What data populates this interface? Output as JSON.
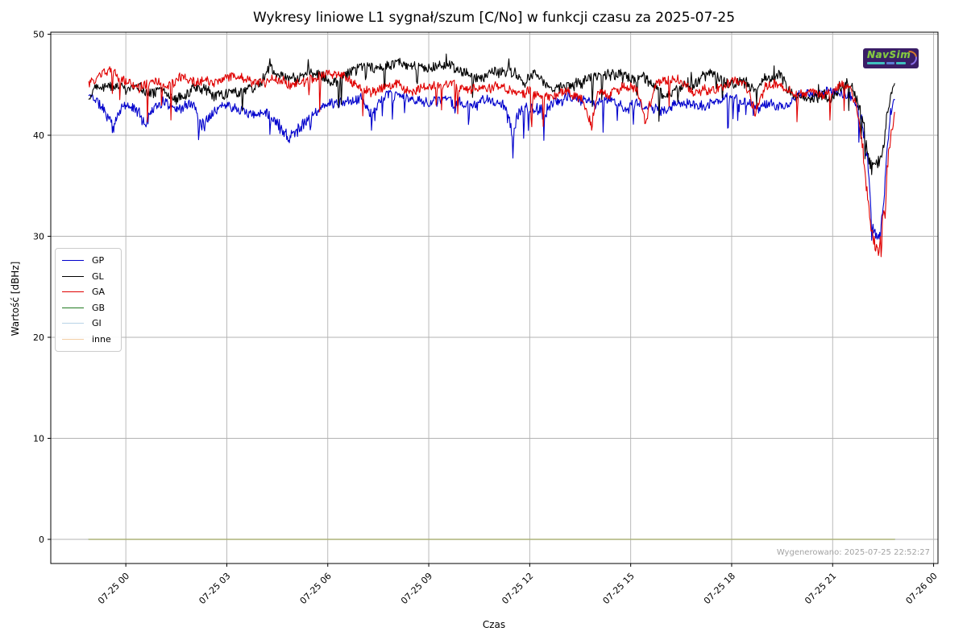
{
  "page_title": "Wykresy liniowe L1 sygnał/szum [C/No] w funkcji czasu za 2025-07-25",
  "branding": {
    "logo_text": "NavSim",
    "logo_bg": "#3a1d66",
    "logo_fg": "#8cc63e"
  },
  "chart_data": {
    "type": "line",
    "title": "Wykresy liniowe L1 sygnał/szum [C/No] w funkcji czasu za 2025-07-25",
    "xlabel": "Czas",
    "ylabel": "Wartość [dBHz]",
    "watermark": "Wygenerowano: 2025-07-25 22:52:27",
    "grid": true,
    "legend_position": "center left",
    "x_tick_labels": [
      "07-25 00",
      "07-25 03",
      "07-25 06",
      "07-25 09",
      "07-25 12",
      "07-25 15",
      "07-25 18",
      "07-25 21",
      "07-26 00"
    ],
    "x_tick_hours": [
      0,
      3,
      6,
      9,
      12,
      15,
      18,
      21,
      24
    ],
    "y_ticks": [
      0,
      10,
      20,
      30,
      40,
      50
    ],
    "xlim_hours": [
      -2.23,
      24.13
    ],
    "ylim": [
      -2.39,
      50.2
    ],
    "time_range_hours": [
      -1.1,
      22.84
    ],
    "grid_color": "#b3b3b3",
    "frame_color": "#000000",
    "tick_label_color": "#000000",
    "series": [
      {
        "name": "GP",
        "color": "#0000cc",
        "width": 1.1,
        "jitter": 0.45,
        "spike_prob": 0.02,
        "spike_depth": [
          1.0,
          3.2
        ],
        "up_prob": 0,
        "up_amp": [
          0,
          0
        ],
        "seed": 11,
        "anchors": [
          [
            -1.1,
            43.9
          ],
          [
            -0.9,
            43.6
          ],
          [
            -0.6,
            42.2
          ],
          [
            -0.35,
            40.6
          ],
          [
            -0.2,
            42.8
          ],
          [
            0,
            43.2
          ],
          [
            0.3,
            42.6
          ],
          [
            0.6,
            41.2
          ],
          [
            0.8,
            43.0
          ],
          [
            1.2,
            43.6
          ],
          [
            1.6,
            43.2
          ],
          [
            2,
            43.5
          ],
          [
            2.3,
            41.6
          ],
          [
            2.6,
            43.1
          ],
          [
            3,
            43.6
          ],
          [
            3.4,
            43.2
          ],
          [
            3.8,
            42.6
          ],
          [
            4.2,
            42.9
          ],
          [
            4.6,
            41.4
          ],
          [
            4.9,
            40.3
          ],
          [
            5.2,
            41.6
          ],
          [
            5.5,
            42.4
          ],
          [
            5.8,
            43.2
          ],
          [
            6.2,
            43.6
          ],
          [
            6.6,
            43.3
          ],
          [
            7,
            43.8
          ],
          [
            7.3,
            42.2
          ],
          [
            7.6,
            43.3
          ],
          [
            8,
            43.5
          ],
          [
            8.4,
            43.0
          ],
          [
            8.8,
            42.7
          ],
          [
            9.2,
            43.1
          ],
          [
            9.6,
            43.4
          ],
          [
            10,
            43.2
          ],
          [
            10.4,
            42.7
          ],
          [
            10.8,
            43.0
          ],
          [
            11.2,
            42.4
          ],
          [
            11.5,
            40.0
          ],
          [
            11.7,
            41.9
          ],
          [
            12,
            42.3
          ],
          [
            12.4,
            41.6
          ],
          [
            12.8,
            42.9
          ],
          [
            13.2,
            43.3
          ],
          [
            13.6,
            42.8
          ],
          [
            14,
            43.2
          ],
          [
            14.4,
            43.4
          ],
          [
            14.8,
            42.9
          ],
          [
            15.2,
            43.3
          ],
          [
            15.6,
            43.0
          ],
          [
            16,
            42.6
          ],
          [
            16.4,
            43.2
          ],
          [
            16.8,
            43.4
          ],
          [
            17.2,
            42.9
          ],
          [
            17.6,
            43.2
          ],
          [
            18,
            43.6
          ],
          [
            18.4,
            43.1
          ],
          [
            18.8,
            42.8
          ],
          [
            19.2,
            43.3
          ],
          [
            19.6,
            43.0
          ],
          [
            20,
            43.4
          ],
          [
            20.4,
            43.7
          ],
          [
            20.8,
            43.9
          ],
          [
            21.2,
            44.1
          ],
          [
            21.5,
            43.8
          ],
          [
            21.7,
            43.2
          ],
          [
            21.9,
            41.0
          ],
          [
            22.05,
            37.0
          ],
          [
            22.15,
            32.5
          ],
          [
            22.25,
            30.2
          ],
          [
            22.4,
            29.8
          ],
          [
            22.5,
            32.0
          ],
          [
            22.6,
            36.5
          ],
          [
            22.7,
            41.0
          ],
          [
            22.8,
            43.0
          ],
          [
            22.84,
            43.6
          ]
        ]
      },
      {
        "name": "GL",
        "color": "#000000",
        "width": 1.1,
        "jitter": 0.5,
        "spike_prob": 0.018,
        "spike_depth": [
          0.8,
          2.8
        ],
        "up_prob": 0.01,
        "up_amp": [
          0.4,
          1.2
        ],
        "seed": 22,
        "anchors": [
          [
            -1.1,
            43.8
          ],
          [
            -0.9,
            45.3
          ],
          [
            -0.5,
            45.6
          ],
          [
            0,
            45.2
          ],
          [
            0.5,
            44.6
          ],
          [
            1,
            44.9
          ],
          [
            1.5,
            44.2
          ],
          [
            2,
            44.9
          ],
          [
            2.5,
            44.3
          ],
          [
            3,
            44.6
          ],
          [
            3.5,
            45.1
          ],
          [
            4,
            45.3
          ],
          [
            4.3,
            46.8
          ],
          [
            4.6,
            45.4
          ],
          [
            5,
            45.0
          ],
          [
            5.5,
            45.6
          ],
          [
            6,
            45.3
          ],
          [
            6.5,
            45.8
          ],
          [
            7,
            46.2
          ],
          [
            7.5,
            46.0
          ],
          [
            7.9,
            47.0
          ],
          [
            8.3,
            46.3
          ],
          [
            8.7,
            46.0
          ],
          [
            9,
            46.5
          ],
          [
            9.5,
            47.2
          ],
          [
            9.8,
            46.6
          ],
          [
            10.2,
            46.2
          ],
          [
            10.6,
            45.6
          ],
          [
            11,
            46.3
          ],
          [
            11.4,
            46.8
          ],
          [
            11.8,
            45.6
          ],
          [
            12.2,
            46.2
          ],
          [
            12.6,
            44.8
          ],
          [
            13,
            44.3
          ],
          [
            13.4,
            44.9
          ],
          [
            13.8,
            45.4
          ],
          [
            14.2,
            45.1
          ],
          [
            14.6,
            45.6
          ],
          [
            15,
            45.4
          ],
          [
            15.4,
            45.8
          ],
          [
            15.8,
            44.9
          ],
          [
            16.2,
            44.2
          ],
          [
            16.6,
            44.8
          ],
          [
            17,
            45.3
          ],
          [
            17.4,
            46.1
          ],
          [
            17.8,
            45.2
          ],
          [
            18.2,
            45.6
          ],
          [
            18.6,
            44.9
          ],
          [
            19,
            45.8
          ],
          [
            19.4,
            46.2
          ],
          [
            19.8,
            44.6
          ],
          [
            20.2,
            44.1
          ],
          [
            20.6,
            43.9
          ],
          [
            21,
            44.3
          ],
          [
            21.3,
            45.6
          ],
          [
            21.5,
            45.9
          ],
          [
            21.7,
            44.0
          ],
          [
            21.9,
            41.5
          ],
          [
            22.0,
            39.5
          ],
          [
            22.1,
            37.0
          ],
          [
            22.2,
            36.2
          ],
          [
            22.35,
            36.6
          ],
          [
            22.45,
            37.2
          ],
          [
            22.55,
            39.5
          ],
          [
            22.65,
            42.0
          ],
          [
            22.75,
            43.8
          ],
          [
            22.84,
            44.3
          ]
        ]
      },
      {
        "name": "GA",
        "color": "#e00000",
        "width": 1.1,
        "jitter": 0.42,
        "spike_prob": 0.018,
        "spike_depth": [
          1.0,
          3.8
        ],
        "up_prob": 0,
        "up_amp": [
          0,
          0
        ],
        "seed": 33,
        "anchors": [
          [
            -1.1,
            45.1
          ],
          [
            -0.8,
            45.6
          ],
          [
            -0.5,
            46.1
          ],
          [
            -0.2,
            45.4
          ],
          [
            0,
            44.9
          ],
          [
            0.4,
            44.4
          ],
          [
            0.8,
            45.0
          ],
          [
            1.2,
            44.6
          ],
          [
            1.6,
            45.1
          ],
          [
            2,
            44.8
          ],
          [
            2.4,
            45.2
          ],
          [
            2.8,
            44.7
          ],
          [
            3.2,
            45.3
          ],
          [
            3.6,
            44.9
          ],
          [
            4,
            44.6
          ],
          [
            4.4,
            45.2
          ],
          [
            4.8,
            44.8
          ],
          [
            5.2,
            45.4
          ],
          [
            5.6,
            45.1
          ],
          [
            6,
            45.6
          ],
          [
            6.4,
            45.3
          ],
          [
            6.8,
            44.6
          ],
          [
            7.2,
            43.9
          ],
          [
            7.6,
            44.4
          ],
          [
            8,
            44.7
          ],
          [
            8.4,
            44.3
          ],
          [
            8.8,
            44.6
          ],
          [
            9.2,
            44.2
          ],
          [
            9.6,
            44.5
          ],
          [
            10,
            44.3
          ],
          [
            10.4,
            44.6
          ],
          [
            10.8,
            44.2
          ],
          [
            11.2,
            44.5
          ],
          [
            11.6,
            44.1
          ],
          [
            12,
            44.6
          ],
          [
            12.4,
            43.9
          ],
          [
            12.8,
            44.4
          ],
          [
            13.2,
            44.8
          ],
          [
            13.6,
            43.6
          ],
          [
            13.8,
            41.5
          ],
          [
            14,
            43.8
          ],
          [
            14.4,
            44.5
          ],
          [
            14.8,
            44.9
          ],
          [
            15.2,
            44.4
          ],
          [
            15.45,
            41.0
          ],
          [
            15.7,
            44.2
          ],
          [
            16,
            44.8
          ],
          [
            16.4,
            45.2
          ],
          [
            16.8,
            44.7
          ],
          [
            17.2,
            45.1
          ],
          [
            17.6,
            44.6
          ],
          [
            18,
            45.0
          ],
          [
            18.4,
            44.4
          ],
          [
            18.7,
            41.8
          ],
          [
            19,
            44.2
          ],
          [
            19.4,
            44.7
          ],
          [
            19.8,
            44.1
          ],
          [
            20.2,
            43.8
          ],
          [
            20.6,
            43.5
          ],
          [
            21,
            43.9
          ],
          [
            21.3,
            44.8
          ],
          [
            21.5,
            44.4
          ],
          [
            21.7,
            42.8
          ],
          [
            21.9,
            39.0
          ],
          [
            22.05,
            33.5
          ],
          [
            22.2,
            29.5
          ],
          [
            22.35,
            28.3
          ],
          [
            22.45,
            30.5
          ],
          [
            22.55,
            33.0
          ],
          [
            22.65,
            37.5
          ],
          [
            22.75,
            40.5
          ],
          [
            22.82,
            42.0
          ]
        ]
      },
      {
        "name": "GB",
        "color": "#217a21",
        "width": 1.4,
        "jitter": 0,
        "spike_prob": 0,
        "spike_depth": [
          0,
          0
        ],
        "up_prob": 0,
        "up_amp": [
          0,
          0
        ],
        "seed": 44,
        "anchors": [
          [
            -1.1,
            0
          ],
          [
            22.84,
            0
          ]
        ]
      },
      {
        "name": "GI",
        "color": "#b7d3e6",
        "width": 1.0,
        "jitter": 0,
        "spike_prob": 0,
        "spike_depth": [
          0,
          0
        ],
        "up_prob": 0,
        "up_amp": [
          0,
          0
        ],
        "seed": 55,
        "anchors": [
          [
            -1.1,
            0
          ],
          [
            22.84,
            0
          ]
        ]
      },
      {
        "name": "inne",
        "color": "#f3cfa4",
        "width": 0.9,
        "jitter": 0,
        "spike_prob": 0,
        "spike_depth": [
          0,
          0
        ],
        "up_prob": 0,
        "up_amp": [
          0,
          0
        ],
        "seed": 66,
        "anchors": [
          [
            -1.1,
            0
          ],
          [
            22.84,
            0
          ]
        ]
      }
    ]
  }
}
